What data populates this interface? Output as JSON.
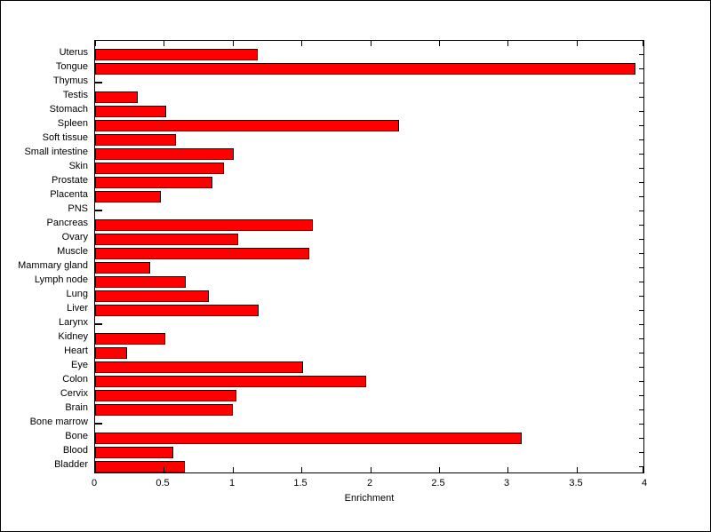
{
  "figure": {
    "background": "#ffffff",
    "frame_color": "#000000"
  },
  "chart_data": {
    "type": "bar",
    "orientation": "horizontal",
    "title": "",
    "xlabel": "Enrichment",
    "ylabel": "",
    "xlim": [
      0,
      4
    ],
    "grid": false,
    "legend": null,
    "bar_color": "#ff0000",
    "bar_edge_color": "#000000",
    "axis_color": "#000000",
    "xticks": [
      0,
      0.5,
      1,
      1.5,
      2,
      2.5,
      3,
      3.5,
      4
    ],
    "xtick_labels": [
      "0",
      "0.5",
      "1",
      "1.5",
      "2",
      "2.5",
      "3",
      "3.5",
      "4"
    ],
    "categories_top_to_bottom": [
      "Uterus",
      "Tongue",
      "Thymus",
      "Testis",
      "Stomach",
      "Spleen",
      "Soft tissue",
      "Small intestine",
      "Skin",
      "Prostate",
      "Placenta",
      "PNS",
      "Pancreas",
      "Ovary",
      "Muscle",
      "Mammary gland",
      "Lymph node",
      "Lung",
      "Liver",
      "Larynx",
      "Kidney",
      "Heart",
      "Eye",
      "Colon",
      "Cervix",
      "Brain",
      "Bone marrow",
      "Bone",
      "Blood",
      "Bladder"
    ],
    "values": [
      1.18,
      3.93,
      0,
      0.31,
      0.52,
      2.21,
      0.59,
      1.01,
      0.94,
      0.85,
      0.48,
      0,
      1.58,
      1.04,
      1.56,
      0.4,
      0.66,
      0.83,
      1.19,
      0,
      0.51,
      0.23,
      1.51,
      1.97,
      1.03,
      1.0,
      0,
      3.1,
      0.57,
      0.65
    ]
  }
}
